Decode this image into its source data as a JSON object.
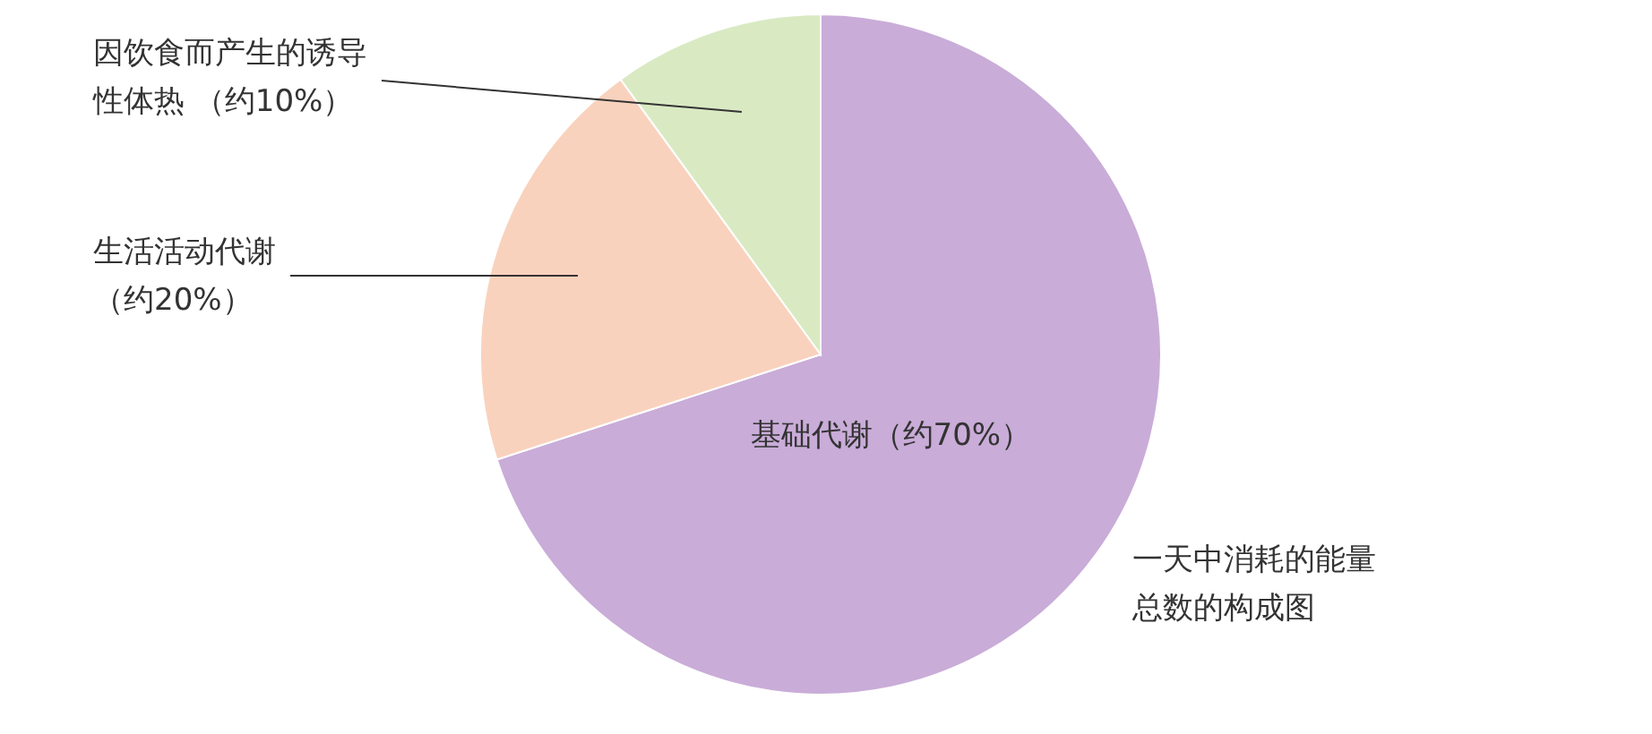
{
  "chart_data": {
    "type": "pie",
    "title": "一天中消耗的能量总数的构成图",
    "categories": [
      "基础代谢",
      "生活活动代谢",
      "因饮食而产生的诱导性体热"
    ],
    "values": [
      70,
      20,
      10
    ],
    "colors": [
      "#c9acd8",
      "#f9d2bd",
      "#d9eac3"
    ],
    "value_labels": [
      "（约70%）",
      "（约20%）",
      "（约10%）"
    ]
  }
}
